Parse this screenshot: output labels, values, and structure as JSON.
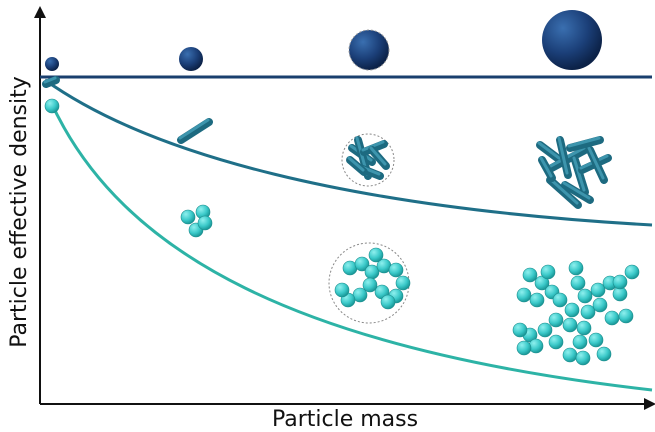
{
  "axes": {
    "x_label": "Particle mass",
    "y_label": "Particle effective density"
  }
}
